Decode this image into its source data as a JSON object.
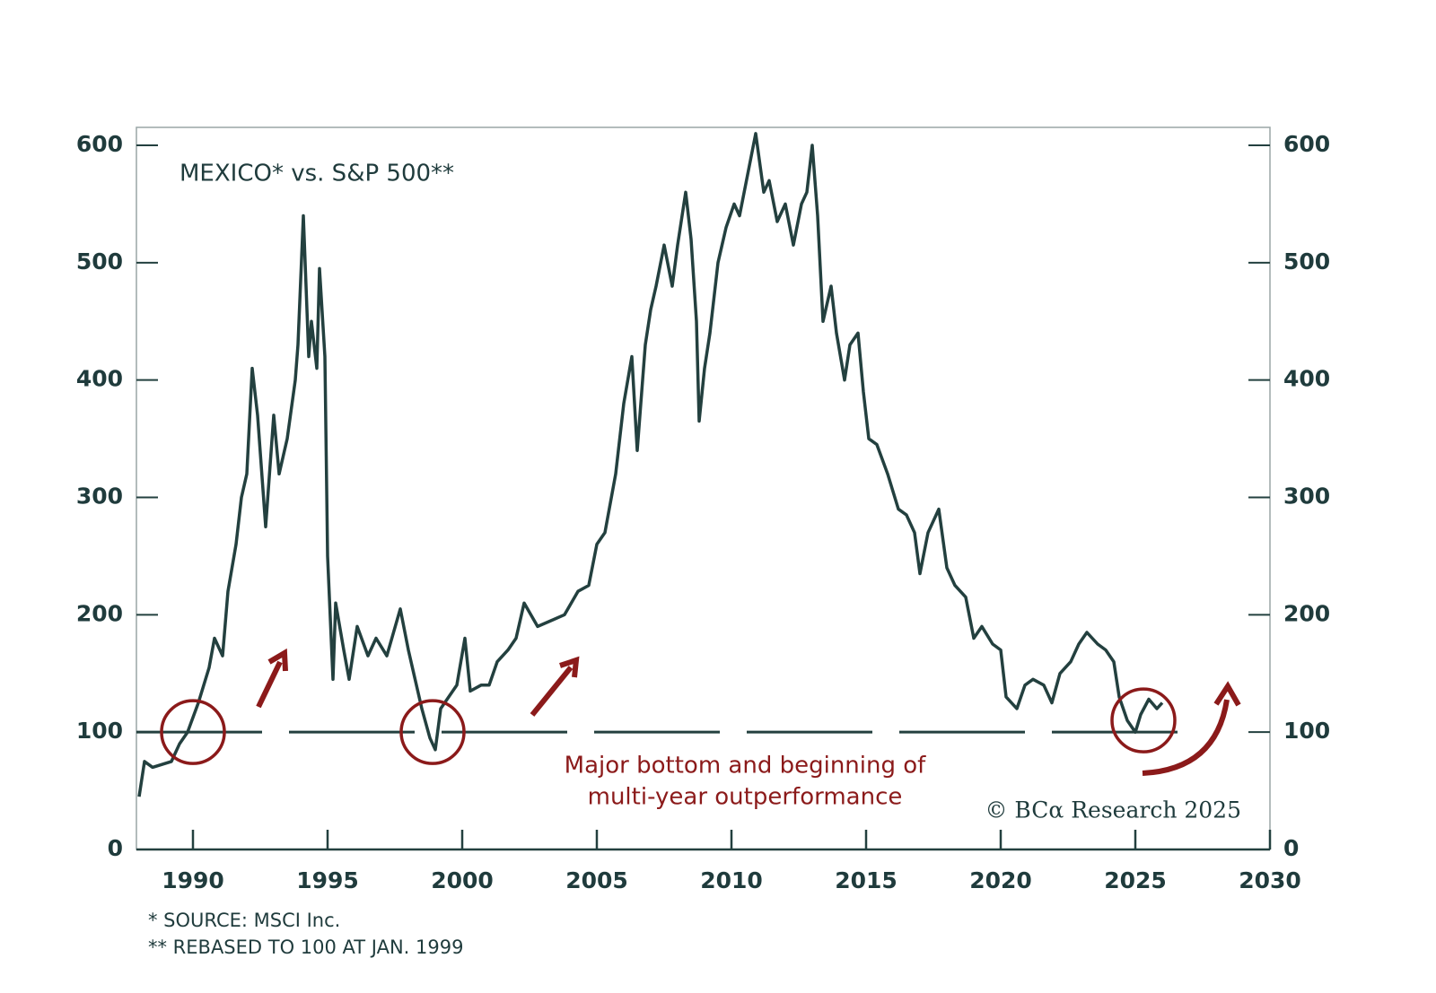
{
  "chart_data": {
    "type": "line",
    "title": "MEXICO* vs. S&P 500**",
    "annotation": [
      "Major bottom and beginning of",
      "multi-year outperformance"
    ],
    "credit": "© BCα Research 2025",
    "footnotes": [
      "* SOURCE: MSCI Inc.",
      "** REBASED TO 100 AT JAN. 1999"
    ],
    "xlim": [
      1987.9,
      2030
    ],
    "xticks": [
      1990,
      1995,
      2000,
      2005,
      2010,
      2015,
      2020,
      2025,
      2030
    ],
    "ylim": [
      0,
      600
    ],
    "yticks": [
      0,
      100,
      200,
      300,
      400,
      500,
      600
    ],
    "y2lim": [
      0,
      600
    ],
    "y2ticks": [
      0,
      100,
      200,
      300,
      400,
      500,
      600
    ],
    "reference_line": {
      "y": 100,
      "x": [
        1987.9,
        2027
      ]
    },
    "highlights": [
      {
        "x": 1990,
        "y": 100
      },
      {
        "x": 1998.9,
        "y": 100
      },
      {
        "x": 2025.3,
        "y": 110
      }
    ],
    "highlight_color": "#8b1a1a",
    "x": [
      1988.0,
      1988.2,
      1988.5,
      1989.2,
      1989.5,
      1989.8,
      1990.2,
      1990.6,
      1990.8,
      1991.1,
      1991.3,
      1991.6,
      1991.8,
      1992.0,
      1992.2,
      1992.4,
      1992.7,
      1993.0,
      1993.2,
      1993.5,
      1993.8,
      1993.9,
      1994.1,
      1994.3,
      1994.4,
      1994.6,
      1994.7,
      1994.9,
      1995.0,
      1995.2,
      1995.3,
      1995.6,
      1995.8,
      1996.1,
      1996.5,
      1996.8,
      1997.2,
      1997.7,
      1998.0,
      1998.2,
      1998.5,
      1998.8,
      1999.0,
      1999.2,
      1999.5,
      1999.8,
      2000.1,
      2000.3,
      2000.7,
      2001.0,
      2001.3,
      2001.7,
      2002.0,
      2002.3,
      2002.8,
      2003.3,
      2003.8,
      2004.3,
      2004.7,
      2005.0,
      2005.3,
      2005.7,
      2006.0,
      2006.3,
      2006.5,
      2006.8,
      2007.0,
      2007.2,
      2007.5,
      2007.8,
      2008.0,
      2008.3,
      2008.5,
      2008.7,
      2008.8,
      2009.0,
      2009.2,
      2009.5,
      2009.8,
      2010.1,
      2010.3,
      2010.6,
      2010.9,
      2011.2,
      2011.4,
      2011.7,
      2012.0,
      2012.3,
      2012.6,
      2012.8,
      2013.0,
      2013.2,
      2013.4,
      2013.7,
      2013.9,
      2014.2,
      2014.4,
      2014.7,
      2014.9,
      2015.1,
      2015.4,
      2015.8,
      2016.2,
      2016.5,
      2016.8,
      2017.0,
      2017.3,
      2017.7,
      2018.0,
      2018.3,
      2018.7,
      2019.0,
      2019.3,
      2019.7,
      2020.0,
      2020.2,
      2020.6,
      2020.9,
      2021.2,
      2021.6,
      2021.9,
      2022.2,
      2022.6,
      2022.9,
      2023.2,
      2023.6,
      2023.9,
      2024.2,
      2024.4,
      2024.7,
      2025.0,
      2025.2,
      2025.5,
      2025.8,
      2026.0
    ],
    "series": [
      {
        "name": "MEXICO vs. S&P 500",
        "color": "#23403f",
        "values": [
          45,
          75,
          70,
          75,
          90,
          100,
          125,
          155,
          180,
          165,
          220,
          260,
          300,
          320,
          410,
          370,
          275,
          370,
          320,
          350,
          400,
          430,
          540,
          420,
          450,
          410,
          495,
          420,
          250,
          145,
          210,
          170,
          145,
          190,
          165,
          180,
          165,
          205,
          170,
          150,
          120,
          95,
          85,
          120,
          130,
          140,
          180,
          135,
          140,
          140,
          160,
          170,
          180,
          210,
          190,
          195,
          200,
          220,
          225,
          260,
          270,
          320,
          380,
          420,
          340,
          430,
          460,
          480,
          515,
          480,
          515,
          560,
          520,
          450,
          365,
          410,
          440,
          500,
          530,
          550,
          540,
          575,
          610,
          560,
          570,
          535,
          550,
          515,
          550,
          560,
          600,
          540,
          450,
          480,
          440,
          400,
          430,
          440,
          390,
          350,
          345,
          320,
          290,
          285,
          270,
          235,
          270,
          290,
          240,
          225,
          215,
          180,
          190,
          175,
          170,
          130,
          120,
          140,
          145,
          140,
          125,
          150,
          160,
          175,
          185,
          175,
          170,
          160,
          130,
          110,
          100,
          115,
          128,
          120,
          125
        ]
      }
    ]
  }
}
